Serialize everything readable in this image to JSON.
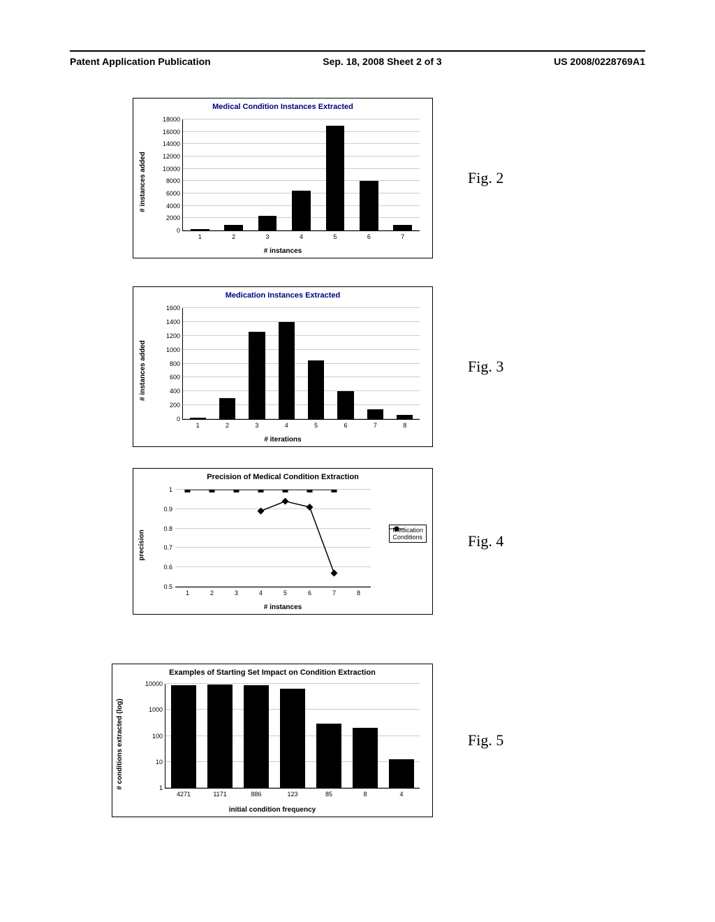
{
  "header": {
    "left": "Patent Application Publication",
    "center": "Sep. 18, 2008  Sheet 2 of 3",
    "right": "US 2008/0228769A1"
  },
  "labels": {
    "fig2": "Fig. 2",
    "fig3": "Fig. 3",
    "fig4": "Fig. 4",
    "fig5": "Fig. 5"
  },
  "fig2": {
    "type": "bar",
    "title": "Medical Condition Instances Extracted",
    "ylabel": "# instances added",
    "xlabel": "# instances",
    "categories": [
      "1",
      "2",
      "3",
      "4",
      "5",
      "6",
      "7"
    ],
    "values": [
      200,
      900,
      2400,
      6400,
      17000,
      8000,
      900
    ],
    "ylim": [
      0,
      18000
    ],
    "ytick_step": 2000,
    "bar_color": "#000000",
    "grid_color": "#cccccc",
    "title_color": "#000080"
  },
  "fig3": {
    "type": "bar",
    "title": "Medication Instances Extracted",
    "ylabel": "# instances added",
    "xlabel": "# iterations",
    "categories": [
      "1",
      "2",
      "3",
      "4",
      "5",
      "6",
      "7",
      "8"
    ],
    "values": [
      20,
      300,
      1260,
      1400,
      850,
      400,
      140,
      60
    ],
    "ylim": [
      0,
      1600
    ],
    "ytick_step": 200,
    "bar_color": "#000000",
    "grid_color": "#cccccc",
    "title_color": "#000080"
  },
  "fig4": {
    "type": "line",
    "title": "Precision of Medical Condition Extraction",
    "ylabel": "precision",
    "xlabel": "# instances",
    "categories": [
      "1",
      "2",
      "3",
      "4",
      "5",
      "6",
      "7",
      "8"
    ],
    "series": [
      {
        "name": "Medication",
        "marker": "square",
        "color": "#000000",
        "values": [
          1.0,
          1.0,
          1.0,
          1.0,
          1.0,
          1.0,
          1.0,
          null
        ]
      },
      {
        "name": "Conditions",
        "marker": "diamond",
        "color": "#000000",
        "values": [
          null,
          null,
          null,
          0.89,
          0.94,
          0.91,
          0.57,
          null
        ]
      }
    ],
    "ylim": [
      0.5,
      1.0
    ],
    "ytick_step": 0.1,
    "grid_color": "#cccccc",
    "title_color": "#000000",
    "legend_labels": {
      "medication": "Medication",
      "conditions": "Conditions"
    }
  },
  "fig5": {
    "type": "bar",
    "title": "Examples of Starting Set Impact on Condition Extraction",
    "ylabel": "# conditions extracted (log)",
    "xlabel": "initial condition frequency",
    "categories": [
      "4271",
      "1171",
      "886",
      "123",
      "85",
      "8",
      "4"
    ],
    "values": [
      9000,
      9500,
      9000,
      6500,
      300,
      200,
      13
    ],
    "yticks": [
      1,
      10,
      100,
      1000,
      10000
    ],
    "ylim_log": [
      1,
      10000
    ],
    "bar_color": "#000000",
    "grid_color": "#cccccc",
    "title_color": "#000000"
  }
}
